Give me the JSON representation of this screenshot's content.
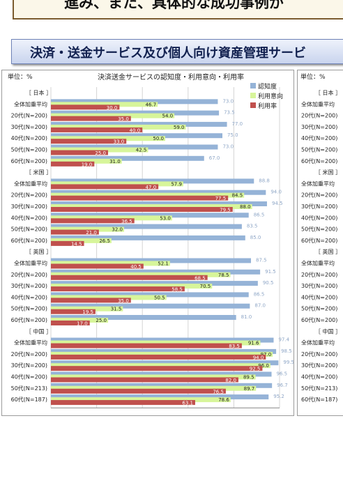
{
  "banner": {
    "text": "進み、また、具体的な成功事例が"
  },
  "section": {
    "title": "決済・送金サービス及び個人向け資産管理サービ"
  },
  "chart_data": {
    "type": "bar",
    "orientation": "horizontal",
    "title": "決済送金サービスの認知度・利用意向・利用率",
    "unit_label": "単位：%",
    "xlim": [
      0,
      100
    ],
    "xticks": [
      "0 %",
      "20 %",
      "40 %",
      "60 %",
      "80 %",
      "100 %"
    ],
    "legend": {
      "position": "top-right",
      "items": [
        {
          "name": "認知度",
          "color": "#95b3d7"
        },
        {
          "name": "利用意向",
          "color": "#d7f59a"
        },
        {
          "name": "利用率",
          "color": "#c0504d"
        }
      ]
    },
    "series_colors": {
      "awareness": "#95b3d7",
      "intent": "#d7f59a",
      "usage": "#c0504d"
    },
    "groups": [
      {
        "name": "［ 日本 ］",
        "rows": [
          {
            "label": "全体加重平均",
            "awareness": 73.0,
            "intent": 46.7,
            "usage": 30.0
          },
          {
            "label": "20代(N=200)",
            "awareness": 73.5,
            "intent": 54.0,
            "usage": 35.0
          },
          {
            "label": "30代(N=200)",
            "awareness": 77.0,
            "intent": 59.0,
            "usage": 40.0
          },
          {
            "label": "40代(N=200)",
            "awareness": 75.0,
            "intent": 50.0,
            "usage": 33.0
          },
          {
            "label": "50代(N=200)",
            "awareness": 73.0,
            "intent": 42.5,
            "usage": 25.0
          },
          {
            "label": "60代(N=200)",
            "awareness": 67.0,
            "intent": 31.0,
            "usage": 19.0
          }
        ]
      },
      {
        "name": "［ 米国 ］",
        "rows": [
          {
            "label": "全体加重平均",
            "awareness": 88.8,
            "intent": 57.9,
            "usage": 47.0
          },
          {
            "label": "20代(N=200)",
            "awareness": 94.0,
            "intent": 84.5,
            "usage": 77.5
          },
          {
            "label": "30代(N=200)",
            "awareness": 94.5,
            "intent": 88.0,
            "usage": 79.5
          },
          {
            "label": "40代(N=200)",
            "awareness": 86.5,
            "intent": 53.0,
            "usage": 36.5
          },
          {
            "label": "50代(N=200)",
            "awareness": 83.5,
            "intent": 32.0,
            "usage": 21.0
          },
          {
            "label": "60代(N=200)",
            "awareness": 85.0,
            "intent": 26.5,
            "usage": 14.5
          }
        ]
      },
      {
        "name": "［ 英国 ］",
        "rows": [
          {
            "label": "全体加重平均",
            "awareness": 87.5,
            "intent": 52.1,
            "usage": 40.5
          },
          {
            "label": "20代(N=200)",
            "awareness": 91.5,
            "intent": 78.5,
            "usage": 68.5
          },
          {
            "label": "30代(N=200)",
            "awareness": 90.5,
            "intent": 70.5,
            "usage": 58.5
          },
          {
            "label": "40代(N=200)",
            "awareness": 86.5,
            "intent": 50.5,
            "usage": 35.0
          },
          {
            "label": "50代(N=200)",
            "awareness": 87.0,
            "intent": 31.5,
            "usage": 19.5
          },
          {
            "label": "60代(N=200)",
            "awareness": 81.0,
            "intent": 25.0,
            "usage": 17.0
          }
        ]
      },
      {
        "name": "［ 中国 ］",
        "rows": [
          {
            "label": "全体加重平均",
            "awareness": 97.4,
            "intent": 91.6,
            "usage": 83.5
          },
          {
            "label": "20代(N=200)",
            "awareness": 98.5,
            "intent": 97.0,
            "usage": 94.0
          },
          {
            "label": "30代(N=200)",
            "awareness": 99.5,
            "intent": 96.0,
            "usage": 92.5
          },
          {
            "label": "40代(N=200)",
            "awareness": 96.5,
            "intent": 89.5,
            "usage": 82.0
          },
          {
            "label": "50代(N=213)",
            "awareness": 96.7,
            "intent": 89.7,
            "usage": 76.5
          },
          {
            "label": "60代(N=187)",
            "awareness": 95.2,
            "intent": 78.6,
            "usage": 63.1
          }
        ]
      }
    ]
  }
}
